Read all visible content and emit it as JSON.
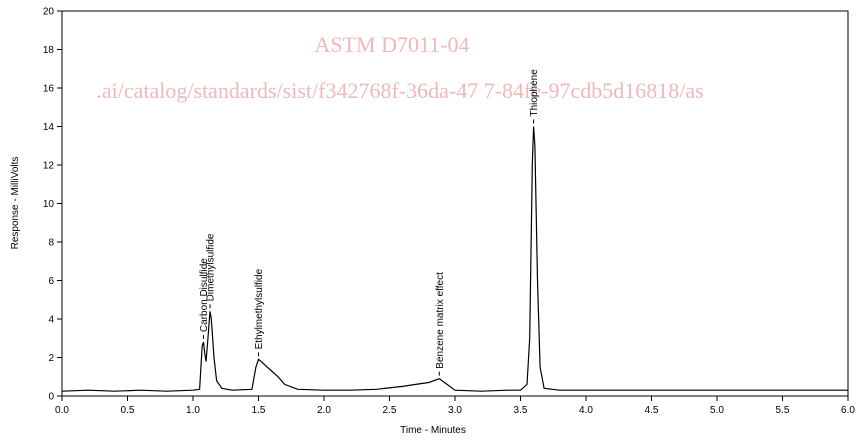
{
  "chart_data": {
    "type": "line",
    "watermark": [
      "ASTM D7011-04",
      ".ai/catalog/standards/sist/f342768f-36da-47 7-84fe-97cdb5d16818/as"
    ],
    "xlabel": "Time - Minutes",
    "ylabel": "Response - MilliVolts",
    "x": [
      0.0,
      0.2,
      0.4,
      0.6,
      0.8,
      1.0,
      1.05,
      1.07,
      1.08,
      1.09,
      1.1,
      1.12,
      1.13,
      1.14,
      1.16,
      1.18,
      1.22,
      1.3,
      1.45,
      1.48,
      1.5,
      1.52,
      1.55,
      1.6,
      1.65,
      1.7,
      1.8,
      2.0,
      2.2,
      2.4,
      2.6,
      2.7,
      2.8,
      2.88,
      2.92,
      3.0,
      3.2,
      3.4,
      3.5,
      3.55,
      3.57,
      3.59,
      3.6,
      3.61,
      3.63,
      3.65,
      3.68,
      3.8,
      4.0,
      4.5,
      5.0,
      5.5,
      6.0
    ],
    "series": [
      {
        "color": "#000000",
        "values": [
          0.25,
          0.3,
          0.25,
          0.3,
          0.25,
          0.3,
          0.35,
          2.6,
          2.8,
          2.2,
          1.8,
          3.5,
          4.4,
          4.0,
          2.0,
          0.8,
          0.4,
          0.3,
          0.35,
          1.5,
          1.9,
          1.8,
          1.6,
          1.3,
          1.0,
          0.6,
          0.35,
          0.3,
          0.3,
          0.35,
          0.5,
          0.6,
          0.7,
          0.9,
          0.7,
          0.3,
          0.25,
          0.3,
          0.3,
          0.6,
          3,
          12,
          14,
          13,
          6,
          1.5,
          0.4,
          0.3,
          0.3,
          0.3,
          0.3,
          0.3,
          0.3
        ]
      }
    ],
    "annotations": [
      {
        "text": "Carbon Disulfide",
        "x": 1.08,
        "y": 2.8
      },
      {
        "text": "Dimethylsulfide",
        "x": 1.13,
        "y": 4.4
      },
      {
        "text": "Ethylmethylsulfide",
        "x": 1.5,
        "y": 1.9
      },
      {
        "text": "Benzene matrix effect",
        "x": 2.88,
        "y": 0.9
      },
      {
        "text": "Thiophene",
        "x": 3.6,
        "y": 14
      }
    ],
    "xlim": [
      0,
      6
    ],
    "xticks": [
      {
        "value": 0,
        "label": "0.0"
      },
      0.5,
      {
        "value": 1,
        "label": "1.0"
      },
      1.5,
      {
        "value": 2,
        "label": "2.0"
      },
      2.5,
      {
        "value": 3,
        "label": "3.0"
      },
      3.5,
      {
        "value": 4,
        "label": "4.0"
      },
      4.5,
      {
        "value": 5,
        "label": "5.0"
      },
      5.5,
      {
        "value": 6,
        "label": "6.0"
      }
    ],
    "ylim": [
      0,
      20
    ],
    "yticks": [
      0,
      2,
      4,
      6,
      8,
      10,
      12,
      14,
      16,
      18,
      20
    ]
  }
}
